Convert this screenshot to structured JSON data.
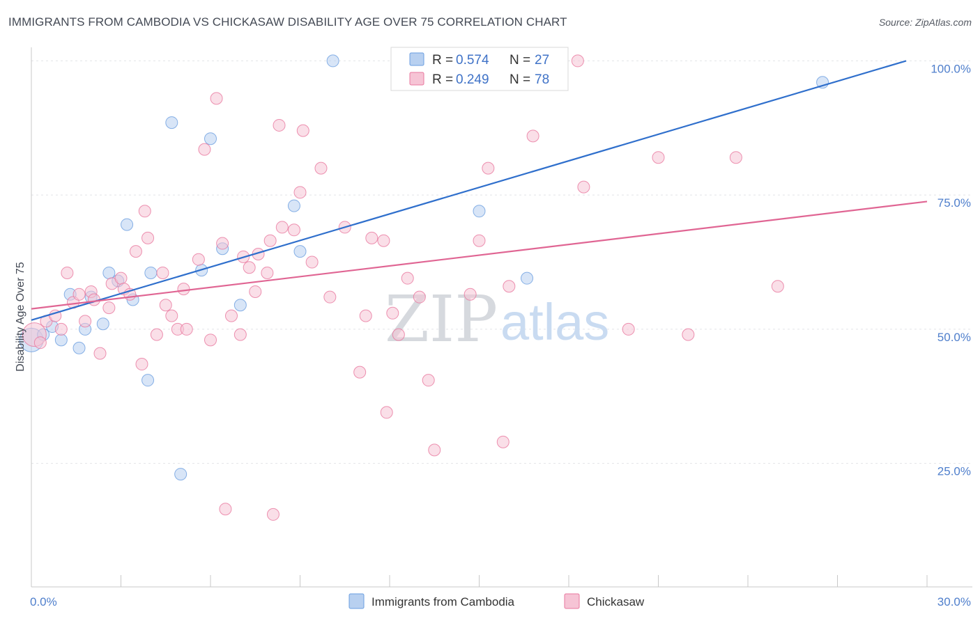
{
  "header": {
    "title": "IMMIGRANTS FROM CAMBODIA VS CHICKASAW DISABILITY AGE OVER 75 CORRELATION CHART",
    "source": "Source: ZipAtlas.com"
  },
  "watermark": {
    "zip": "ZIP",
    "atlas": "atlas"
  },
  "chart_data": {
    "type": "scatter",
    "title": "IMMIGRANTS FROM CAMBODIA VS CHICKASAW DISABILITY AGE OVER 75 CORRELATION CHART",
    "xlabel": "",
    "ylabel": "Disability Age Over 75",
    "xlim": [
      0,
      30
    ],
    "ylim": [
      2,
      102
    ],
    "x_tick_labels": [
      "0.0%",
      "30.0%"
    ],
    "y_ticks": [
      25,
      50,
      75,
      100
    ],
    "y_tick_labels": [
      "25.0%",
      "50.0%",
      "75.0%",
      "100.0%"
    ],
    "grid": true,
    "legend_position": "top-center",
    "series": [
      {
        "name": "Immigrants from Cambodia",
        "color": "#6a9ee0",
        "fill": "#b8d0f0",
        "R": "0.574",
        "N": "27",
        "trend": {
          "x": [
            0,
            29.3
          ],
          "y": [
            51.7,
            100
          ]
        },
        "points": [
          {
            "x": 0.0,
            "y": 48.0,
            "big": true
          },
          {
            "x": 0.4,
            "y": 49.0
          },
          {
            "x": 0.7,
            "y": 50.5
          },
          {
            "x": 1.0,
            "y": 48.0
          },
          {
            "x": 1.3,
            "y": 56.5
          },
          {
            "x": 1.6,
            "y": 46.5
          },
          {
            "x": 1.8,
            "y": 50.0
          },
          {
            "x": 2.0,
            "y": 56.0
          },
          {
            "x": 2.4,
            "y": 51.0
          },
          {
            "x": 2.6,
            "y": 60.5
          },
          {
            "x": 2.9,
            "y": 59.0
          },
          {
            "x": 3.2,
            "y": 69.5
          },
          {
            "x": 3.4,
            "y": 55.5
          },
          {
            "x": 3.9,
            "y": 40.5
          },
          {
            "x": 4.0,
            "y": 60.5
          },
          {
            "x": 4.7,
            "y": 88.5
          },
          {
            "x": 5.0,
            "y": 23.0
          },
          {
            "x": 5.7,
            "y": 61.0
          },
          {
            "x": 6.0,
            "y": 85.5
          },
          {
            "x": 6.4,
            "y": 65.0
          },
          {
            "x": 7.0,
            "y": 54.5
          },
          {
            "x": 8.8,
            "y": 73.0
          },
          {
            "x": 9.0,
            "y": 64.5
          },
          {
            "x": 10.1,
            "y": 100.0
          },
          {
            "x": 15.0,
            "y": 72.0
          },
          {
            "x": 16.6,
            "y": 59.5
          },
          {
            "x": 26.5,
            "y": 96.0
          }
        ]
      },
      {
        "name": "Chickasaw",
        "color": "#e8779e",
        "fill": "#f6c4d5",
        "R": "0.249",
        "N": "78",
        "trend": {
          "x": [
            0,
            30
          ],
          "y": [
            53.8,
            73.8
          ]
        },
        "points": [
          {
            "x": 0.1,
            "y": 49.0,
            "big": true
          },
          {
            "x": 0.3,
            "y": 47.5
          },
          {
            "x": 0.5,
            "y": 51.5
          },
          {
            "x": 0.8,
            "y": 52.5
          },
          {
            "x": 1.0,
            "y": 50.0
          },
          {
            "x": 1.2,
            "y": 60.5
          },
          {
            "x": 1.4,
            "y": 55.0
          },
          {
            "x": 1.6,
            "y": 56.5
          },
          {
            "x": 1.8,
            "y": 51.5
          },
          {
            "x": 2.0,
            "y": 57.0
          },
          {
            "x": 2.1,
            "y": 55.5
          },
          {
            "x": 2.3,
            "y": 45.5
          },
          {
            "x": 2.6,
            "y": 54.0
          },
          {
            "x": 2.7,
            "y": 58.5
          },
          {
            "x": 3.0,
            "y": 59.5
          },
          {
            "x": 3.1,
            "y": 57.5
          },
          {
            "x": 3.3,
            "y": 56.5
          },
          {
            "x": 3.5,
            "y": 64.5
          },
          {
            "x": 3.7,
            "y": 43.5
          },
          {
            "x": 3.8,
            "y": 72.0
          },
          {
            "x": 3.9,
            "y": 67.0
          },
          {
            "x": 4.2,
            "y": 49.0
          },
          {
            "x": 4.4,
            "y": 60.5
          },
          {
            "x": 4.5,
            "y": 54.5
          },
          {
            "x": 4.7,
            "y": 52.5
          },
          {
            "x": 4.9,
            "y": 50.0
          },
          {
            "x": 5.1,
            "y": 57.5
          },
          {
            "x": 5.2,
            "y": 50.0
          },
          {
            "x": 5.6,
            "y": 63.0
          },
          {
            "x": 5.8,
            "y": 83.5
          },
          {
            "x": 6.0,
            "y": 48.0
          },
          {
            "x": 6.2,
            "y": 93.0
          },
          {
            "x": 6.4,
            "y": 66.0
          },
          {
            "x": 6.5,
            "y": 16.5
          },
          {
            "x": 6.7,
            "y": 52.5
          },
          {
            "x": 7.0,
            "y": 49.0
          },
          {
            "x": 7.1,
            "y": 63.5
          },
          {
            "x": 7.3,
            "y": 61.5
          },
          {
            "x": 7.5,
            "y": 57.0
          },
          {
            "x": 7.6,
            "y": 64.0
          },
          {
            "x": 7.9,
            "y": 60.5
          },
          {
            "x": 8.0,
            "y": 66.5
          },
          {
            "x": 8.1,
            "y": 15.5
          },
          {
            "x": 8.3,
            "y": 88.0
          },
          {
            "x": 8.4,
            "y": 69.0
          },
          {
            "x": 8.8,
            "y": 68.5
          },
          {
            "x": 9.0,
            "y": 75.5
          },
          {
            "x": 9.1,
            "y": 87.0
          },
          {
            "x": 9.4,
            "y": 62.5
          },
          {
            "x": 9.7,
            "y": 80.0
          },
          {
            "x": 10.0,
            "y": 56.0
          },
          {
            "x": 10.5,
            "y": 69.0
          },
          {
            "x": 11.0,
            "y": 42.0
          },
          {
            "x": 11.2,
            "y": 52.5
          },
          {
            "x": 11.4,
            "y": 67.0
          },
          {
            "x": 11.8,
            "y": 66.5
          },
          {
            "x": 11.9,
            "y": 34.5
          },
          {
            "x": 12.1,
            "y": 53.0
          },
          {
            "x": 12.3,
            "y": 49.0
          },
          {
            "x": 12.6,
            "y": 59.5
          },
          {
            "x": 13.0,
            "y": 56.0
          },
          {
            "x": 13.3,
            "y": 40.5
          },
          {
            "x": 13.5,
            "y": 27.5
          },
          {
            "x": 14.7,
            "y": 56.5
          },
          {
            "x": 15.0,
            "y": 66.5
          },
          {
            "x": 15.3,
            "y": 80.0
          },
          {
            "x": 15.8,
            "y": 29.0
          },
          {
            "x": 16.0,
            "y": 58.0
          },
          {
            "x": 16.6,
            "y": 100.0
          },
          {
            "x": 16.8,
            "y": 86.0
          },
          {
            "x": 18.3,
            "y": 100.0
          },
          {
            "x": 18.5,
            "y": 76.5
          },
          {
            "x": 20.0,
            "y": 50.0
          },
          {
            "x": 21.0,
            "y": 82.0
          },
          {
            "x": 22.0,
            "y": 49.0
          },
          {
            "x": 23.6,
            "y": 82.0
          },
          {
            "x": 25.0,
            "y": 58.0
          },
          {
            "x": 17.4,
            "y": 100.0
          }
        ]
      }
    ]
  },
  "legend": {
    "r_label": "R =",
    "n_label": "N ="
  }
}
